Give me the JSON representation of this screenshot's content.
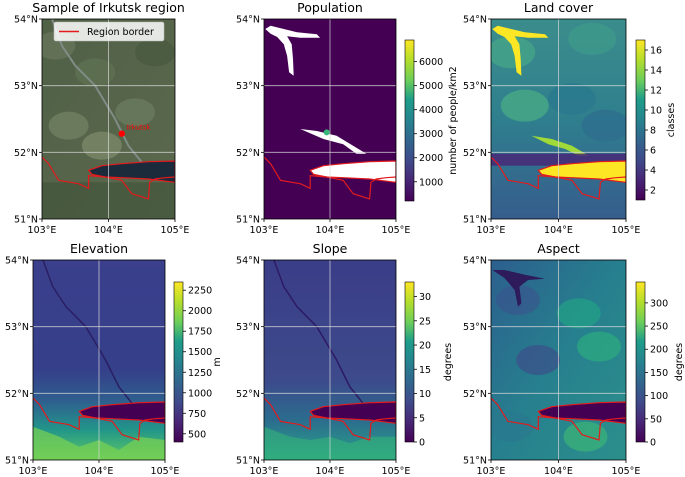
{
  "chart_data": [
    {
      "type": "heatmap",
      "title": "Sample of Irkutsk region",
      "xlim": [
        103,
        105
      ],
      "ylim": [
        51,
        54
      ],
      "xticks": [
        "103°E",
        "104°E",
        "105°E"
      ],
      "yticks": [
        "51°N",
        "52°N",
        "53°N",
        "54°N"
      ],
      "legend": {
        "label": "Region border",
        "color": "#e41a1c",
        "location": "top-left"
      },
      "annotation": {
        "label": "Irkutsk",
        "lon": 104.2,
        "lat": 52.28,
        "color": "#ff0000"
      },
      "style": "satellite"
    },
    {
      "type": "heatmap",
      "title": "Population",
      "xlim": [
        103,
        105
      ],
      "ylim": [
        51,
        54
      ],
      "xticks": [
        "103°E",
        "104°E",
        "105°E"
      ],
      "yticks": [
        "51°N",
        "52°N",
        "53°N",
        "54°N"
      ],
      "colorbar": {
        "label": "number of people/km2",
        "vmin": 200,
        "vmax": 6900,
        "ticks": [
          "1000",
          "2000",
          "3000",
          "4000",
          "5000",
          "6000"
        ],
        "tick_values": [
          1000,
          2000,
          3000,
          4000,
          5000,
          6000
        ]
      },
      "style": "population"
    },
    {
      "type": "heatmap",
      "title": "Land cover",
      "xlim": [
        103,
        105
      ],
      "ylim": [
        51,
        54
      ],
      "xticks": [
        "103°E",
        "104°E",
        "105°E"
      ],
      "yticks": [
        "51°N",
        "52°N",
        "53°N",
        "54°N"
      ],
      "colorbar": {
        "label": "classes",
        "vmin": 1,
        "vmax": 17,
        "ticks": [
          "2",
          "4",
          "6",
          "8",
          "10",
          "12",
          "14",
          "16"
        ],
        "tick_values": [
          2,
          4,
          6,
          8,
          10,
          12,
          14,
          16
        ]
      },
      "style": "landcover"
    },
    {
      "type": "heatmap",
      "title": "Elevation",
      "xlim": [
        103,
        105
      ],
      "ylim": [
        51,
        54
      ],
      "xticks": [
        "103°E",
        "104°E",
        "105°E"
      ],
      "yticks": [
        "51°N",
        "52°N",
        "53°N",
        "54°N"
      ],
      "colorbar": {
        "label": "m",
        "vmin": 400,
        "vmax": 2350,
        "ticks": [
          "500",
          "750",
          "1000",
          "1250",
          "1500",
          "1750",
          "2000",
          "2250"
        ],
        "tick_values": [
          500,
          750,
          1000,
          1250,
          1500,
          1750,
          2000,
          2250
        ]
      },
      "style": "elevation"
    },
    {
      "type": "heatmap",
      "title": "Slope",
      "xlim": [
        103,
        105
      ],
      "ylim": [
        51,
        54
      ],
      "xticks": [
        "103°E",
        "104°E",
        "105°E"
      ],
      "yticks": [
        "51°N",
        "52°N",
        "53°N",
        "54°N"
      ],
      "colorbar": {
        "label": "degrees",
        "vmin": 0,
        "vmax": 33,
        "ticks": [
          "0",
          "5",
          "10",
          "15",
          "20",
          "25",
          "30"
        ],
        "tick_values": [
          0,
          5,
          10,
          15,
          20,
          25,
          30
        ]
      },
      "style": "slope"
    },
    {
      "type": "heatmap",
      "title": "Aspect",
      "xlim": [
        103,
        105
      ],
      "ylim": [
        51,
        54
      ],
      "xticks": [
        "103°E",
        "104°E",
        "105°E"
      ],
      "yticks": [
        "51°N",
        "52°N",
        "53°N",
        "54°N"
      ],
      "colorbar": {
        "label": "degrees",
        "vmin": 0,
        "vmax": 345,
        "ticks": [
          "0",
          "50",
          "100",
          "150",
          "200",
          "250",
          "300"
        ],
        "tick_values": [
          0,
          50,
          100,
          150,
          200,
          250,
          300
        ]
      },
      "style": "aspect"
    }
  ],
  "colors": {
    "region_border": "#e41a1c",
    "gridline": "#d9d9d9"
  }
}
